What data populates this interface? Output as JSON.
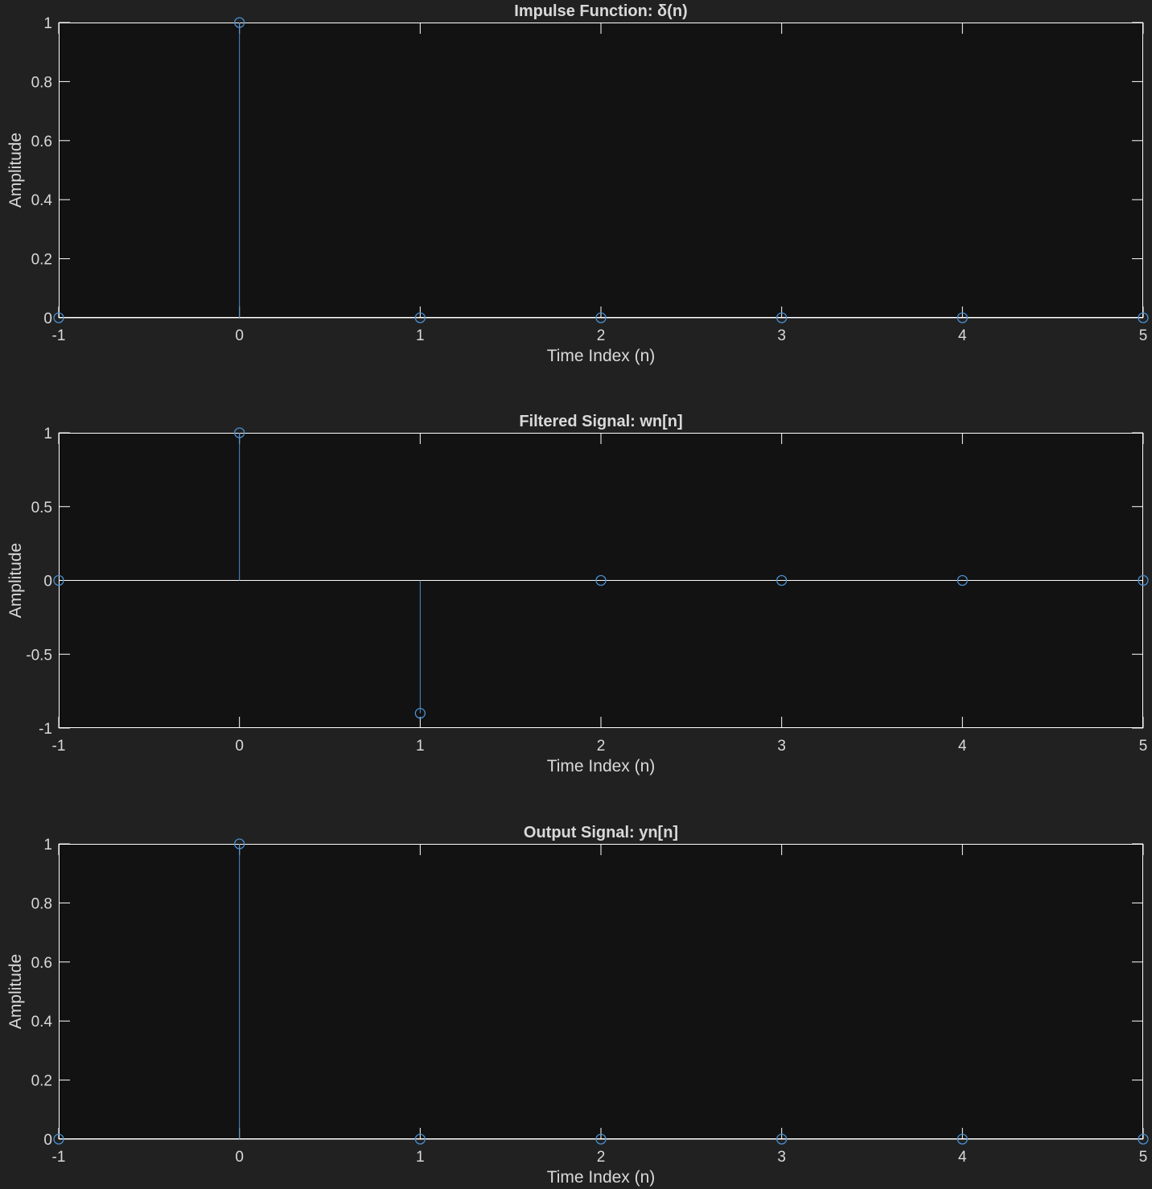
{
  "figure": {
    "background": "#212121",
    "axes_background": "#121212",
    "axes_color": "#ffffff",
    "text_color": "#d9d9d9",
    "stem_color": "#4a8fd1"
  },
  "chart_data": [
    {
      "type": "stem",
      "title": "Impulse Function: δ(n)",
      "xlabel": "Time Index (n)",
      "ylabel": "Amplitude",
      "xlim": [
        -1,
        5
      ],
      "ylim": [
        0,
        1
      ],
      "xticks": [
        -1,
        0,
        1,
        2,
        3,
        4,
        5
      ],
      "yticks": [
        0,
        0.2,
        0.4,
        0.6,
        0.8,
        1
      ],
      "xtick_labels": [
        "-1",
        "0",
        "1",
        "2",
        "3",
        "4",
        "5"
      ],
      "ytick_labels": [
        "0",
        "0.2",
        "0.4",
        "0.6",
        "0.8",
        "1"
      ],
      "x": [
        -1,
        0,
        1,
        2,
        3,
        4,
        5
      ],
      "y": [
        0,
        1,
        0,
        0,
        0,
        0,
        0
      ],
      "grid": false
    },
    {
      "type": "stem",
      "title": "Filtered Signal: wn[n]",
      "xlabel": "Time Index (n)",
      "ylabel": "Amplitude",
      "xlim": [
        -1,
        5
      ],
      "ylim": [
        -1,
        1
      ],
      "xticks": [
        -1,
        0,
        1,
        2,
        3,
        4,
        5
      ],
      "yticks": [
        -1,
        -0.5,
        0,
        0.5,
        1
      ],
      "xtick_labels": [
        "-1",
        "0",
        "1",
        "2",
        "3",
        "4",
        "5"
      ],
      "ytick_labels": [
        "-1",
        "-0.5",
        "0",
        "0.5",
        "1"
      ],
      "x": [
        -1,
        0,
        1,
        2,
        3,
        4,
        5
      ],
      "y": [
        0,
        1,
        -0.9,
        0,
        0,
        0,
        0
      ],
      "grid": false
    },
    {
      "type": "stem",
      "title": "Output Signal: yn[n]",
      "xlabel": "Time Index (n)",
      "ylabel": "Amplitude",
      "xlim": [
        -1,
        5
      ],
      "ylim": [
        0,
        1
      ],
      "xticks": [
        -1,
        0,
        1,
        2,
        3,
        4,
        5
      ],
      "yticks": [
        0,
        0.2,
        0.4,
        0.6,
        0.8,
        1
      ],
      "xtick_labels": [
        "-1",
        "0",
        "1",
        "2",
        "3",
        "4",
        "5"
      ],
      "ytick_labels": [
        "0",
        "0.2",
        "0.4",
        "0.6",
        "0.8",
        "1"
      ],
      "x": [
        -1,
        0,
        1,
        2,
        3,
        4,
        5
      ],
      "y": [
        0,
        1,
        0,
        0,
        0,
        0,
        0
      ],
      "grid": false
    }
  ]
}
